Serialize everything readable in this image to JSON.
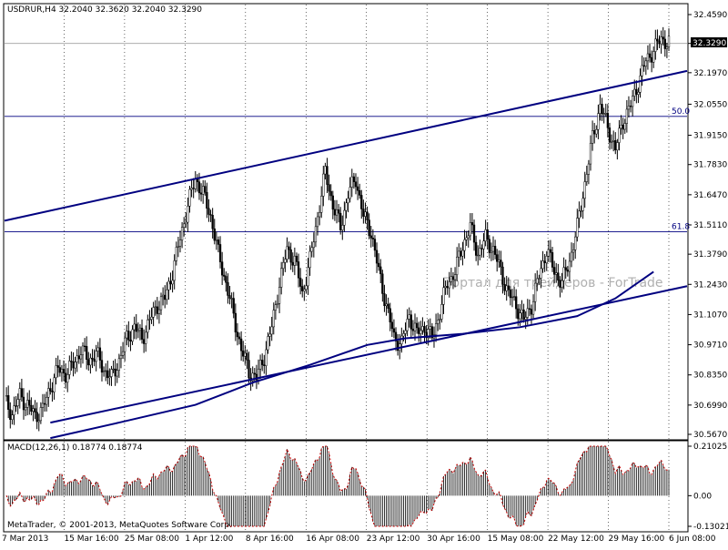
{
  "header": {
    "symbol_line": "USDRUR,H4  32.2040 32.3620 32.2040 32.3290"
  },
  "macd_panel": {
    "title": "MACD(12,26,1) 0.18774 0.18774"
  },
  "watermark": "Портал для трейдеров - ForTrade",
  "copyright": "MetaTrader, © 2001-2013, MetaQuotes Software Corp.",
  "price_axis": {
    "ticks": [
      "32.4590",
      "32.3290",
      "32.1970",
      "32.0550",
      "31.9150",
      "31.7830",
      "31.6470",
      "31.5110",
      "31.3790",
      "31.2430",
      "31.1070",
      "30.9710",
      "30.8350",
      "30.6990",
      "30.5670"
    ],
    "current_price_label": "32.3290"
  },
  "macd_axis": {
    "ticks": [
      "0.21025",
      "0.00",
      "-0.13021"
    ]
  },
  "fib_levels": [
    {
      "label": "50.0",
      "price": 32.0
    },
    {
      "label": "61.8",
      "price": 31.48
    }
  ],
  "time_axis": {
    "labels": [
      "7 Mar 2013",
      "15 Mar 16:00",
      "25 Mar 08:00",
      "1 Apr 12:00",
      "8 Apr 16:00",
      "16 Apr 08:00",
      "23 Apr 12:00",
      "30 Apr 16:00",
      "15 May 08:00",
      "22 May 12:00",
      "29 May 16:00",
      "6 Jun 08:00"
    ]
  },
  "colors": {
    "candle": "#000000",
    "trend_line": "#000080",
    "grid": "#000000",
    "macd_signal": "#c00000",
    "price_label_bg": "#000000"
  },
  "chart_data": {
    "type": "candlestick",
    "symbol": "USDRUR",
    "timeframe": "H4",
    "ohlc_last": {
      "open": 32.204,
      "high": 32.362,
      "low": 32.204,
      "close": 32.329
    },
    "ylim": [
      30.567,
      32.459
    ],
    "close_path": [
      [
        0,
        30.72
      ],
      [
        4,
        30.66
      ],
      [
        8,
        30.74
      ],
      [
        12,
        30.7
      ],
      [
        16,
        30.65
      ],
      [
        20,
        30.68
      ],
      [
        24,
        30.78
      ],
      [
        28,
        30.86
      ],
      [
        32,
        30.84
      ],
      [
        36,
        30.88
      ],
      [
        40,
        30.95
      ],
      [
        44,
        30.9
      ],
      [
        48,
        30.93
      ],
      [
        52,
        30.86
      ],
      [
        56,
        30.82
      ],
      [
        60,
        30.9
      ],
      [
        64,
        31.0
      ],
      [
        68,
        31.05
      ],
      [
        72,
        31.0
      ],
      [
        76,
        31.08
      ],
      [
        80,
        31.15
      ],
      [
        84,
        31.18
      ],
      [
        88,
        31.3
      ],
      [
        92,
        31.45
      ],
      [
        96,
        31.6
      ],
      [
        100,
        31.72
      ],
      [
        104,
        31.65
      ],
      [
        108,
        31.55
      ],
      [
        112,
        31.38
      ],
      [
        116,
        31.25
      ],
      [
        120,
        31.1
      ],
      [
        124,
        30.95
      ],
      [
        128,
        30.85
      ],
      [
        132,
        30.82
      ],
      [
        136,
        30.92
      ],
      [
        140,
        31.05
      ],
      [
        144,
        31.25
      ],
      [
        148,
        31.4
      ],
      [
        152,
        31.35
      ],
      [
        156,
        31.2
      ],
      [
        160,
        31.35
      ],
      [
        164,
        31.55
      ],
      [
        168,
        31.75
      ],
      [
        172,
        31.6
      ],
      [
        176,
        31.5
      ],
      [
        180,
        31.65
      ],
      [
        184,
        31.72
      ],
      [
        188,
        31.55
      ],
      [
        192,
        31.48
      ],
      [
        196,
        31.3
      ],
      [
        200,
        31.15
      ],
      [
        204,
        31.0
      ],
      [
        208,
        30.98
      ],
      [
        212,
        31.1
      ],
      [
        216,
        31.02
      ],
      [
        220,
        31.05
      ],
      [
        224,
        31.0
      ],
      [
        228,
        31.12
      ],
      [
        232,
        31.25
      ],
      [
        236,
        31.3
      ],
      [
        240,
        31.42
      ],
      [
        244,
        31.5
      ],
      [
        248,
        31.38
      ],
      [
        252,
        31.45
      ],
      [
        256,
        31.4
      ],
      [
        260,
        31.3
      ],
      [
        264,
        31.2
      ],
      [
        268,
        31.15
      ],
      [
        272,
        31.08
      ],
      [
        276,
        31.15
      ],
      [
        280,
        31.28
      ],
      [
        284,
        31.4
      ],
      [
        288,
        31.3
      ],
      [
        292,
        31.25
      ],
      [
        296,
        31.35
      ],
      [
        300,
        31.5
      ],
      [
        304,
        31.7
      ],
      [
        308,
        31.9
      ],
      [
        312,
        32.05
      ],
      [
        316,
        31.95
      ],
      [
        320,
        31.85
      ],
      [
        324,
        31.98
      ],
      [
        328,
        32.05
      ],
      [
        332,
        32.15
      ],
      [
        336,
        32.25
      ],
      [
        340,
        32.3
      ],
      [
        344,
        32.35
      ],
      [
        348,
        32.33
      ]
    ],
    "trend_lines": [
      {
        "name": "upper channel",
        "from": [
          0,
          31.53
        ],
        "to": [
          348,
          32.19
        ]
      },
      {
        "name": "lower channel",
        "from": [
          24,
          30.62
        ],
        "to": [
          348,
          31.22
        ]
      }
    ],
    "moving_average": [
      [
        24,
        30.55
      ],
      [
        60,
        30.62
      ],
      [
        100,
        30.7
      ],
      [
        130,
        30.8
      ],
      [
        160,
        30.88
      ],
      [
        190,
        30.97
      ],
      [
        210,
        31.0
      ],
      [
        240,
        31.02
      ],
      [
        270,
        31.05
      ],
      [
        300,
        31.1
      ],
      [
        320,
        31.18
      ],
      [
        340,
        31.3
      ]
    ],
    "macd": {
      "name": "MACD(12,26,1)",
      "value": 0.18774,
      "ylim": [
        -0.13021,
        0.21025
      ]
    }
  }
}
